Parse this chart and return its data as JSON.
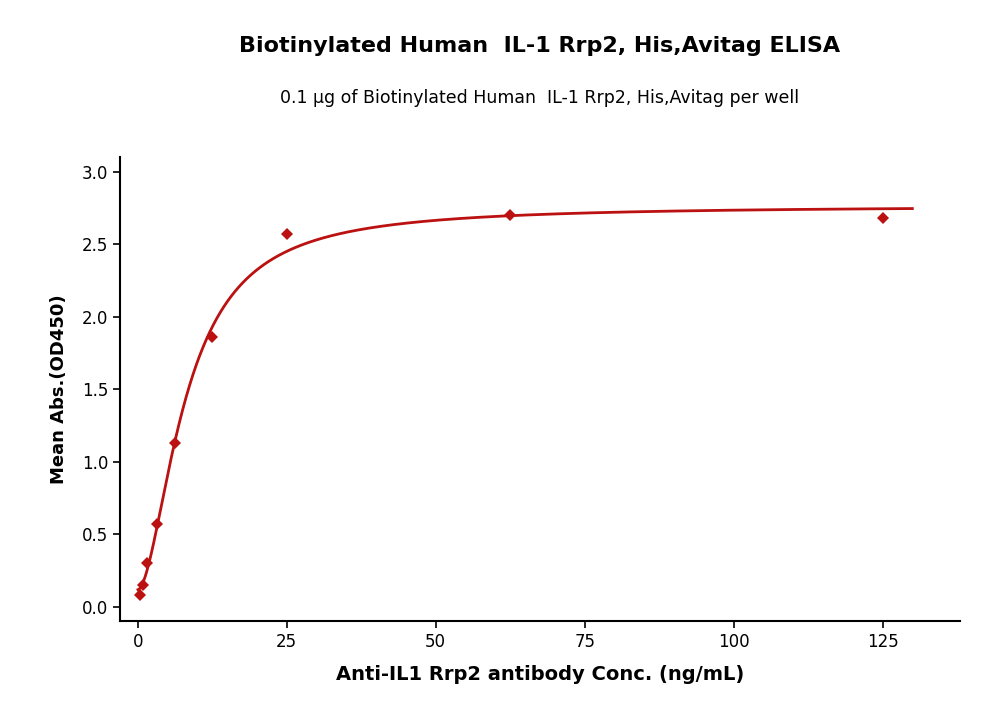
{
  "title": "Biotinylated Human  IL-1 Rrp2, His,Avitag ELISA",
  "subtitle": "0.1 μg of Biotinylated Human  IL-1 Rrp2, His,Avitag per well",
  "xlabel": "Anti-IL1 Rrp2 antibody Conc. (ng/mL)",
  "ylabel": "Mean Abs.(OD450)",
  "title_fontsize": 16,
  "subtitle_fontsize": 12.5,
  "xlabel_fontsize": 14,
  "ylabel_fontsize": 13,
  "line_color": "#bb1111",
  "marker_color": "#bb1111",
  "x_data_points": [
    0.39,
    0.78,
    1.56,
    3.13,
    6.25,
    12.5,
    25.0,
    62.5,
    125.0
  ],
  "y_data_points": [
    0.08,
    0.15,
    0.3,
    0.57,
    1.13,
    1.86,
    2.57,
    2.7,
    2.68
  ],
  "xlim": [
    -3,
    138
  ],
  "ylim": [
    -0.1,
    3.1
  ],
  "yticks": [
    0.0,
    0.5,
    1.0,
    1.5,
    2.0,
    2.5,
    3.0
  ],
  "xticks": [
    0,
    25,
    50,
    75,
    100,
    125
  ],
  "figwidth": 10.0,
  "figheight": 7.14,
  "dpi": 100,
  "background_color": "#ffffff"
}
